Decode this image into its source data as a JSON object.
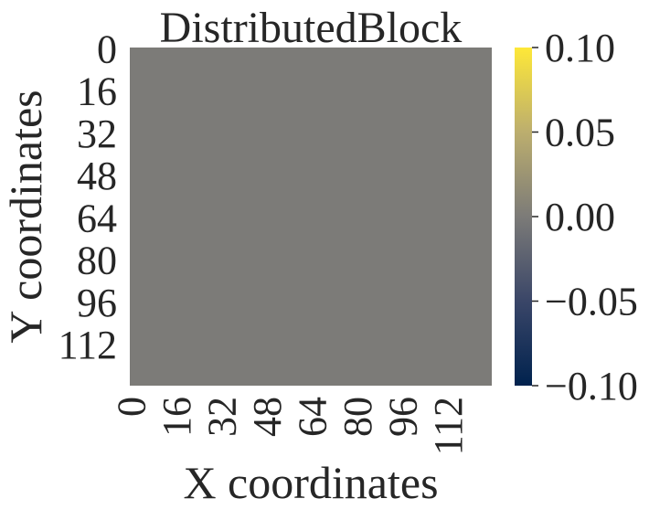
{
  "chart_data": {
    "type": "heatmap",
    "title": "DistributedBlock",
    "xlabel": "X coordinates",
    "ylabel": "Y coordinates",
    "x_ticks": [
      "0",
      "16",
      "32",
      "48",
      "64",
      "80",
      "96",
      "112"
    ],
    "y_ticks": [
      "0",
      "16",
      "32",
      "48",
      "64",
      "80",
      "96",
      "112"
    ],
    "grid_size": [
      128,
      128
    ],
    "value": 0.0,
    "colormap": "cividis",
    "colorbar": {
      "range": [
        -0.1,
        0.1
      ],
      "ticks": [
        "0.10",
        "0.05",
        "0.00",
        "−0.05",
        "−0.10"
      ],
      "tick_values": [
        0.1,
        0.05,
        0.0,
        -0.05,
        -0.1
      ],
      "colors": [
        "#00224e",
        "#7c7b78",
        "#fee838"
      ]
    },
    "cell_color": "#7c7b78"
  }
}
